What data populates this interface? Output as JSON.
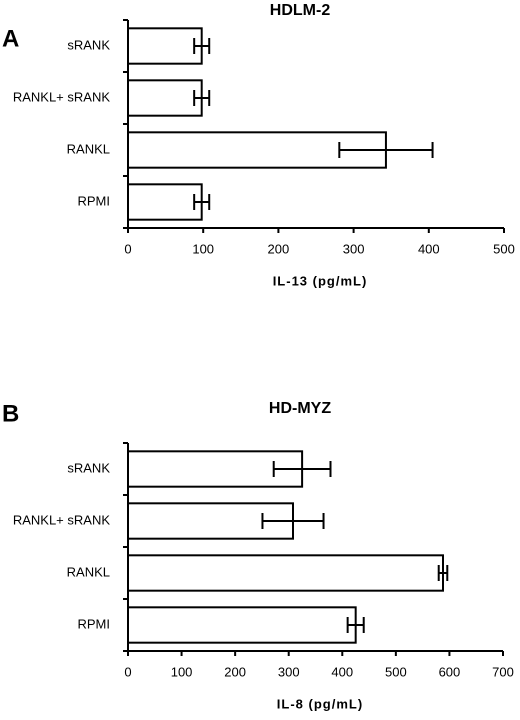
{
  "chart_data": [
    {
      "type": "bar",
      "orientation": "horizontal",
      "panel_label": "A",
      "title": "HDLM-2",
      "categories": [
        "sRANK",
        "RANKL+ sRANK",
        "RANKL",
        "RPMI"
      ],
      "values": [
        98,
        98,
        343,
        98
      ],
      "errors": [
        10,
        10,
        62,
        10
      ],
      "xlim": [
        0,
        500
      ],
      "xticks": [
        0,
        100,
        200,
        300,
        400,
        500
      ],
      "xlabel": "IL-13    (pg/mL)",
      "color": "#ffffff",
      "grid": false
    },
    {
      "type": "bar",
      "orientation": "horizontal",
      "panel_label": "B",
      "title": "HD-MYZ",
      "categories": [
        "sRANK",
        "RANKL+ sRANK",
        "RANKL",
        "RPMI"
      ],
      "values": [
        325,
        308,
        588,
        425
      ],
      "errors": [
        53,
        57,
        8,
        15
      ],
      "xlim": [
        0,
        700
      ],
      "xticks": [
        0,
        100,
        200,
        300,
        400,
        500,
        600,
        700
      ],
      "xlabel": "IL-8   (pg/mL)",
      "color": "#ffffff",
      "grid": false
    }
  ]
}
